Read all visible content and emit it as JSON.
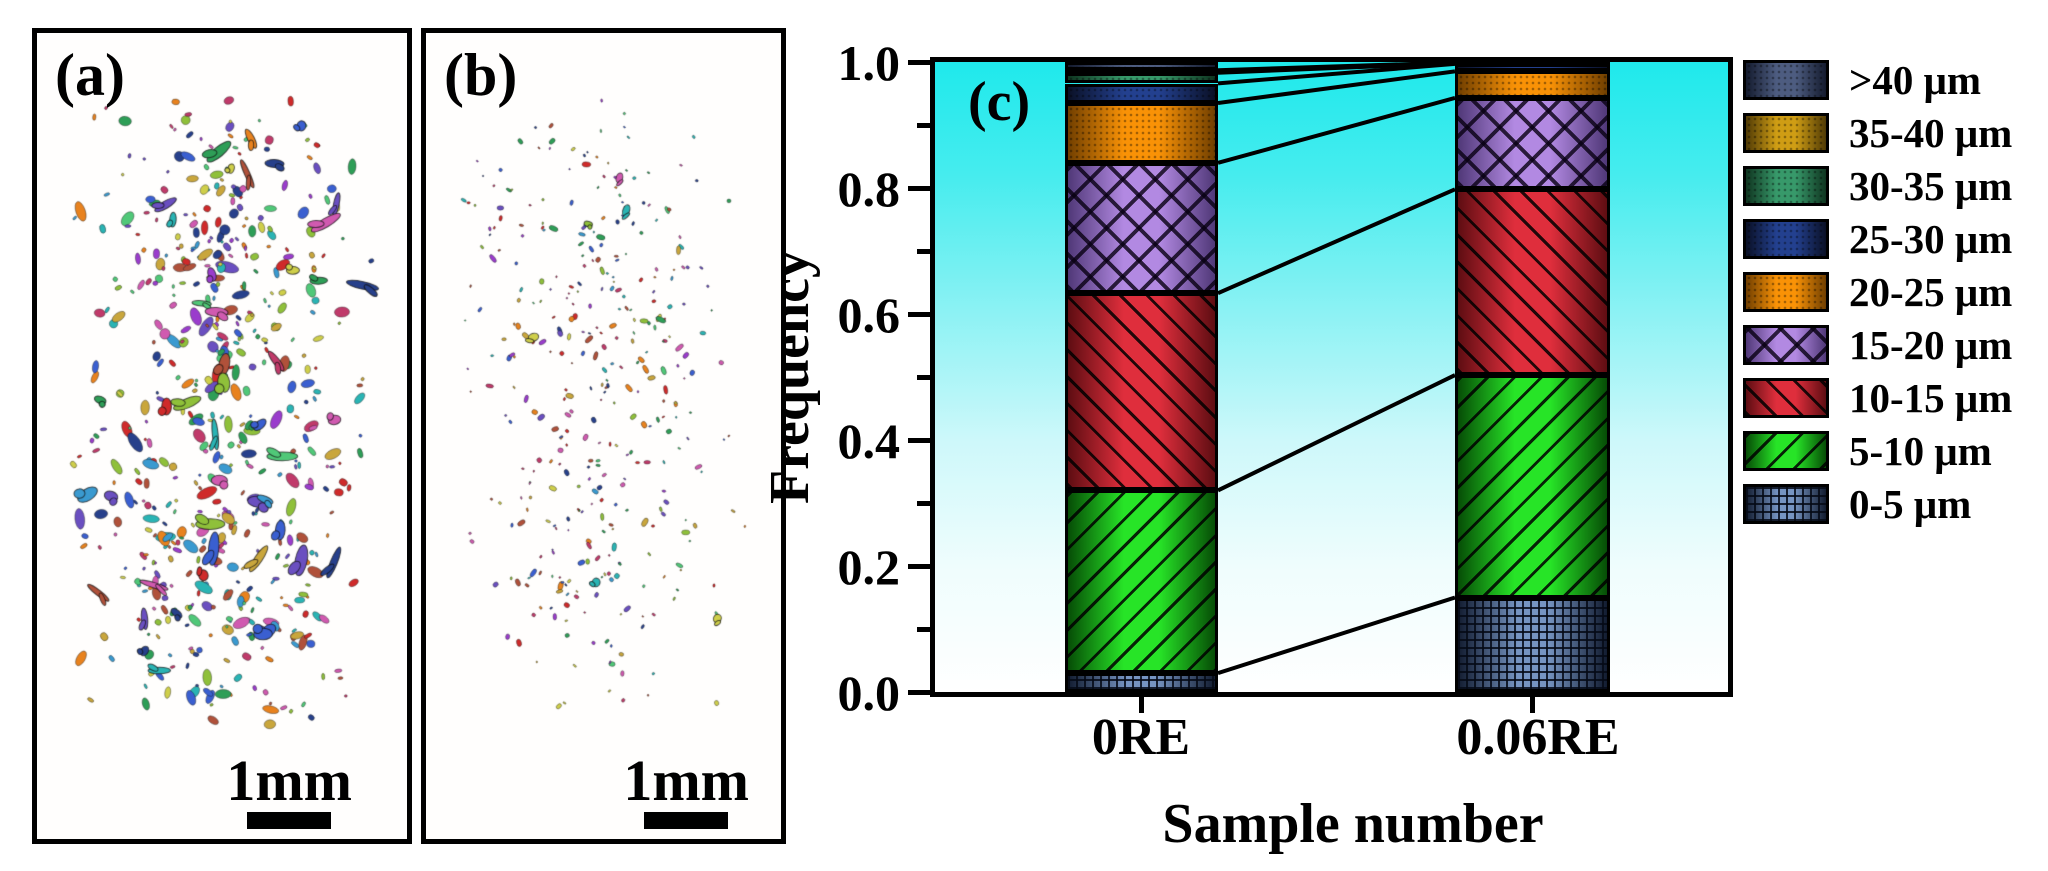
{
  "figure": {
    "panel_a": {
      "label": "(a)",
      "scale_text": "1mm"
    },
    "panel_b": {
      "label": "(b)",
      "scale_text": "1mm"
    },
    "panel_c": {
      "label": "(c)"
    }
  },
  "chart_data": {
    "type": "bar",
    "subtype": "stacked-vertical",
    "title": "",
    "xlabel": "Sample number",
    "ylabel": "Frequency",
    "ylim": [
      0.0,
      1.0
    ],
    "ytick_major_step": 0.2,
    "ytick_minor_step": 0.1,
    "ytick_labels": [
      "0.0",
      "0.2",
      "0.4",
      "0.6",
      "0.8",
      "1.0"
    ],
    "grid": false,
    "legend_position": "right-outside",
    "plot_background": {
      "top_color": "#1fe9ec",
      "bottom_color": "#ffffff"
    },
    "categories": [
      "0RE",
      "0.06RE"
    ],
    "series": [
      {
        "name": "0-5 μm",
        "values": [
          0.03,
          0.15
        ],
        "pattern": "grid",
        "color_mid": "#7694c2",
        "color_edge": "#121c30"
      },
      {
        "name": "5-10 μm",
        "values": [
          0.29,
          0.353
        ],
        "pattern": "d1",
        "color_mid": "#27e427",
        "color_edge": "#064d06"
      },
      {
        "name": "10-15 μm",
        "values": [
          0.313,
          0.295
        ],
        "pattern": "d2",
        "color_mid": "#df2e3c",
        "color_edge": "#5e0d12"
      },
      {
        "name": "15-20 μm",
        "values": [
          0.207,
          0.145
        ],
        "pattern": "cross",
        "color_mid": "#b289e2",
        "color_edge": "#503878"
      },
      {
        "name": "20-25 μm",
        "values": [
          0.095,
          0.042
        ],
        "pattern": "dots",
        "color_mid": "#f99206",
        "color_edge": "#713f00"
      },
      {
        "name": "25-30 μm",
        "values": [
          0.031,
          0.012
        ],
        "pattern": "dots",
        "color_mid": "#23408f",
        "color_edge": "#0a1026"
      },
      {
        "name": "30-35 μm",
        "values": [
          0.017,
          0.001
        ],
        "pattern": "dots",
        "color_mid": "#37996a",
        "color_edge": "#0f3520"
      },
      {
        "name": "35-40 μm",
        "values": [
          0.004,
          0.001
        ],
        "pattern": "dots",
        "color_mid": "#cf9d14",
        "color_edge": "#513b05"
      },
      {
        "name": ">40 μm",
        "values": [
          0.013,
          0.001
        ],
        "pattern": "dots",
        "color_mid": "#4d5c80",
        "color_edge": "#141b2e"
      }
    ],
    "legend_order_top_to_bottom": [
      ">40 μm",
      "35-40 μm",
      "30-35 μm",
      "25-30 μm",
      "20-25 μm",
      "15-20 μm",
      "10-15 μm",
      "5-10 μm",
      "0-5 μm"
    ],
    "connector_lines_between_bars": true
  },
  "particles": {
    "colors": [
      "#c03a6a",
      "#2e9e57",
      "#3a5fd0",
      "#cf2a2a",
      "#2ab4b4",
      "#c9a63c",
      "#9a3ccc",
      "#e8821e",
      "#8fc03a",
      "#3a9ad0",
      "#d05ab0",
      "#6a4fc0",
      "#cfcf4a",
      "#50c878",
      "#b0513a",
      "#27408b"
    ],
    "panel_a": {
      "dot_count": 560,
      "worm_count": 46
    },
    "panel_b": {
      "dot_count": 380,
      "worm_count": 6
    }
  }
}
